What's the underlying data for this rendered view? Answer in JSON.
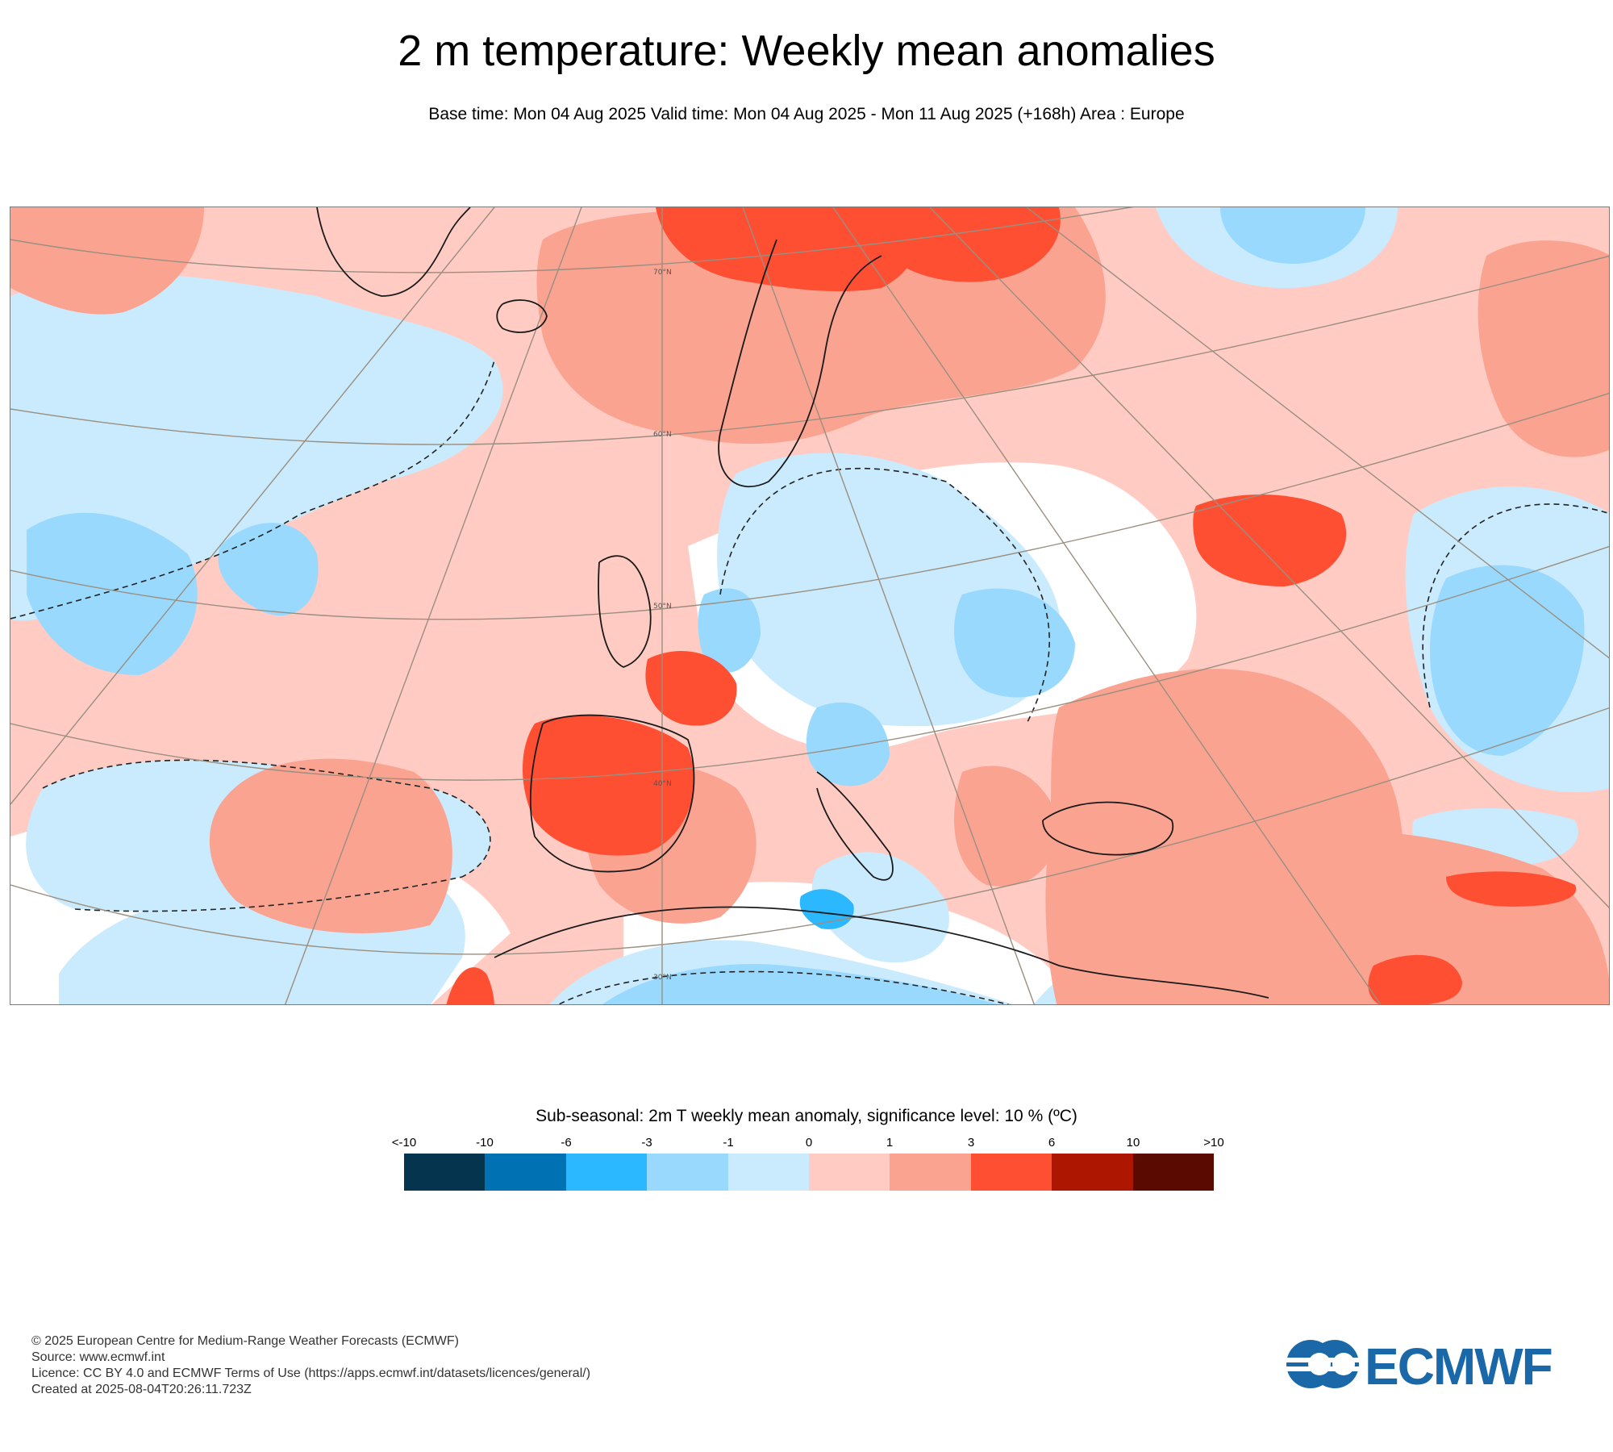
{
  "header": {
    "title": "2 m temperature: Weekly mean anomalies",
    "subtitle": "Base time: Mon 04 Aug 2025 Valid time: Mon 04 Aug 2025 - Mon 11 Aug 2025 (+168h) Area : Europe"
  },
  "map": {
    "lat_labels": [
      "70°N",
      "60°N",
      "50°N",
      "40°N",
      "30°N"
    ]
  },
  "legend": {
    "title": "Sub-seasonal: 2m T weekly mean anomaly, significance level: 10 % (ºC)",
    "ticks": [
      "<-10",
      "-10",
      "-6",
      "-3",
      "-1",
      "0",
      "1",
      "3",
      "6",
      "10",
      ">10"
    ],
    "colors": [
      "#04344e",
      "#0071b3",
      "#2cb8fe",
      "#99d9fe",
      "#c9ebfd",
      "#ffcbc3",
      "#fba391",
      "#fe4f33",
      "#ad1600",
      "#5b0a00"
    ]
  },
  "footer": {
    "lines": [
      "© 2025 European Centre for Medium-Range Weather Forecasts (ECMWF)",
      "Source: www.ecmwf.int",
      "Licence: CC BY 4.0 and ECMWF Terms of Use (https://apps.ecmwf.int/datasets/licences/general/)",
      "Created at 2025-08-04T20:26:11.723Z"
    ],
    "logo_text": "ECMWF",
    "logo_color": "#1b68a9"
  }
}
